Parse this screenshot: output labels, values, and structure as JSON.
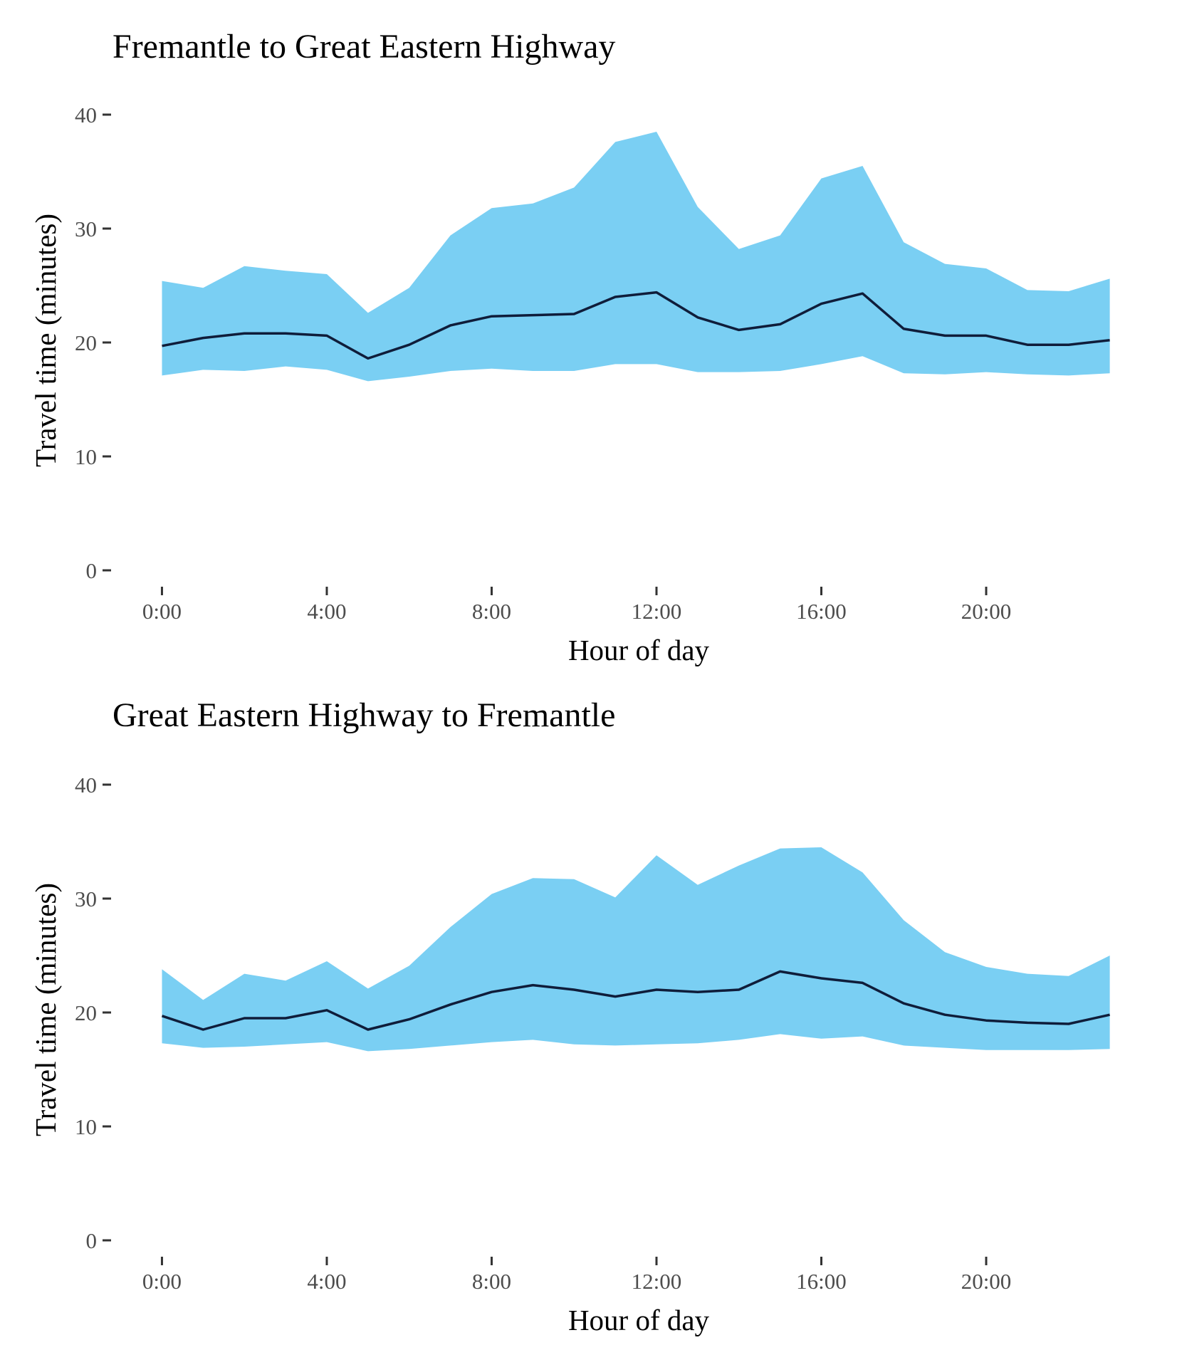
{
  "colors": {
    "band": "#7acff3",
    "median_line": "#0f1d3a"
  },
  "chart_data": [
    {
      "type": "area",
      "title": "Fremantle to Great Eastern Highway",
      "xlabel": "Hour of day",
      "ylabel": "Travel time (minutes)",
      "x": [
        0,
        1,
        2,
        3,
        4,
        5,
        6,
        7,
        8,
        9,
        10,
        11,
        12,
        13,
        14,
        15,
        16,
        17,
        18,
        19,
        20,
        21,
        22,
        23
      ],
      "xticks": [
        0,
        4,
        8,
        12,
        16,
        20
      ],
      "xtick_labels": [
        "0:00",
        "4:00",
        "8:00",
        "12:00",
        "16:00",
        "20:00"
      ],
      "yticks": [
        0,
        10,
        20,
        30,
        40
      ],
      "ytick_labels": [
        "0",
        "10",
        "20",
        "30",
        "40"
      ],
      "xlim": [
        -1.2,
        23.3
      ],
      "ylim": [
        -1,
        41
      ],
      "grid": false,
      "legend": "none",
      "series": [
        {
          "role": "band",
          "upper": [
            25.4,
            24.8,
            26.7,
            26.3,
            26.0,
            22.6,
            24.8,
            29.4,
            31.8,
            32.2,
            33.6,
            37.6,
            38.5,
            31.9,
            28.2,
            29.4,
            34.4,
            35.5,
            28.8,
            26.9,
            26.5,
            24.6,
            24.5,
            25.6
          ],
          "lower": [
            17.1,
            17.6,
            17.5,
            17.9,
            17.6,
            16.6,
            17.0,
            17.5,
            17.7,
            17.5,
            17.5,
            18.1,
            18.1,
            17.4,
            17.4,
            17.5,
            18.1,
            18.8,
            17.3,
            17.2,
            17.4,
            17.2,
            17.1,
            17.3
          ]
        },
        {
          "role": "median",
          "values": [
            19.7,
            20.4,
            20.8,
            20.8,
            20.6,
            18.6,
            19.8,
            21.5,
            22.3,
            22.4,
            22.5,
            24.0,
            24.4,
            22.2,
            21.1,
            21.6,
            23.4,
            24.3,
            21.2,
            20.6,
            20.6,
            19.8,
            19.8,
            20.2
          ]
        }
      ]
    },
    {
      "type": "area",
      "title": "Great Eastern Highway to Fremantle",
      "xlabel": "Hour of day",
      "ylabel": "Travel time (minutes)",
      "x": [
        0,
        1,
        2,
        3,
        4,
        5,
        6,
        7,
        8,
        9,
        10,
        11,
        12,
        13,
        14,
        15,
        16,
        17,
        18,
        19,
        20,
        21,
        22,
        23
      ],
      "xticks": [
        0,
        4,
        8,
        12,
        16,
        20
      ],
      "xtick_labels": [
        "0:00",
        "4:00",
        "8:00",
        "12:00",
        "16:00",
        "20:00"
      ],
      "yticks": [
        0,
        10,
        20,
        30,
        40
      ],
      "ytick_labels": [
        "0",
        "10",
        "20",
        "30",
        "40"
      ],
      "xlim": [
        -1.2,
        23.3
      ],
      "ylim": [
        -1,
        41
      ],
      "grid": false,
      "legend": "none",
      "series": [
        {
          "role": "band",
          "upper": [
            23.8,
            21.1,
            23.4,
            22.8,
            24.5,
            22.1,
            24.1,
            27.5,
            30.4,
            31.8,
            31.7,
            30.1,
            33.8,
            31.2,
            32.9,
            34.4,
            34.5,
            32.3,
            28.1,
            25.3,
            24.0,
            23.4,
            23.2,
            25.0
          ],
          "lower": [
            17.3,
            16.9,
            17.0,
            17.2,
            17.4,
            16.6,
            16.8,
            17.1,
            17.4,
            17.6,
            17.2,
            17.1,
            17.2,
            17.3,
            17.6,
            18.1,
            17.7,
            17.9,
            17.1,
            16.9,
            16.7,
            16.7,
            16.7,
            16.8
          ],
          "note": ""
        },
        {
          "role": "median",
          "values": [
            19.7,
            18.5,
            19.5,
            19.5,
            20.2,
            18.5,
            19.4,
            20.7,
            21.8,
            22.4,
            22.0,
            21.4,
            22.0,
            21.8,
            22.0,
            23.6,
            23.0,
            22.6,
            20.8,
            19.8,
            19.3,
            19.1,
            19.0,
            19.8
          ]
        }
      ]
    }
  ]
}
